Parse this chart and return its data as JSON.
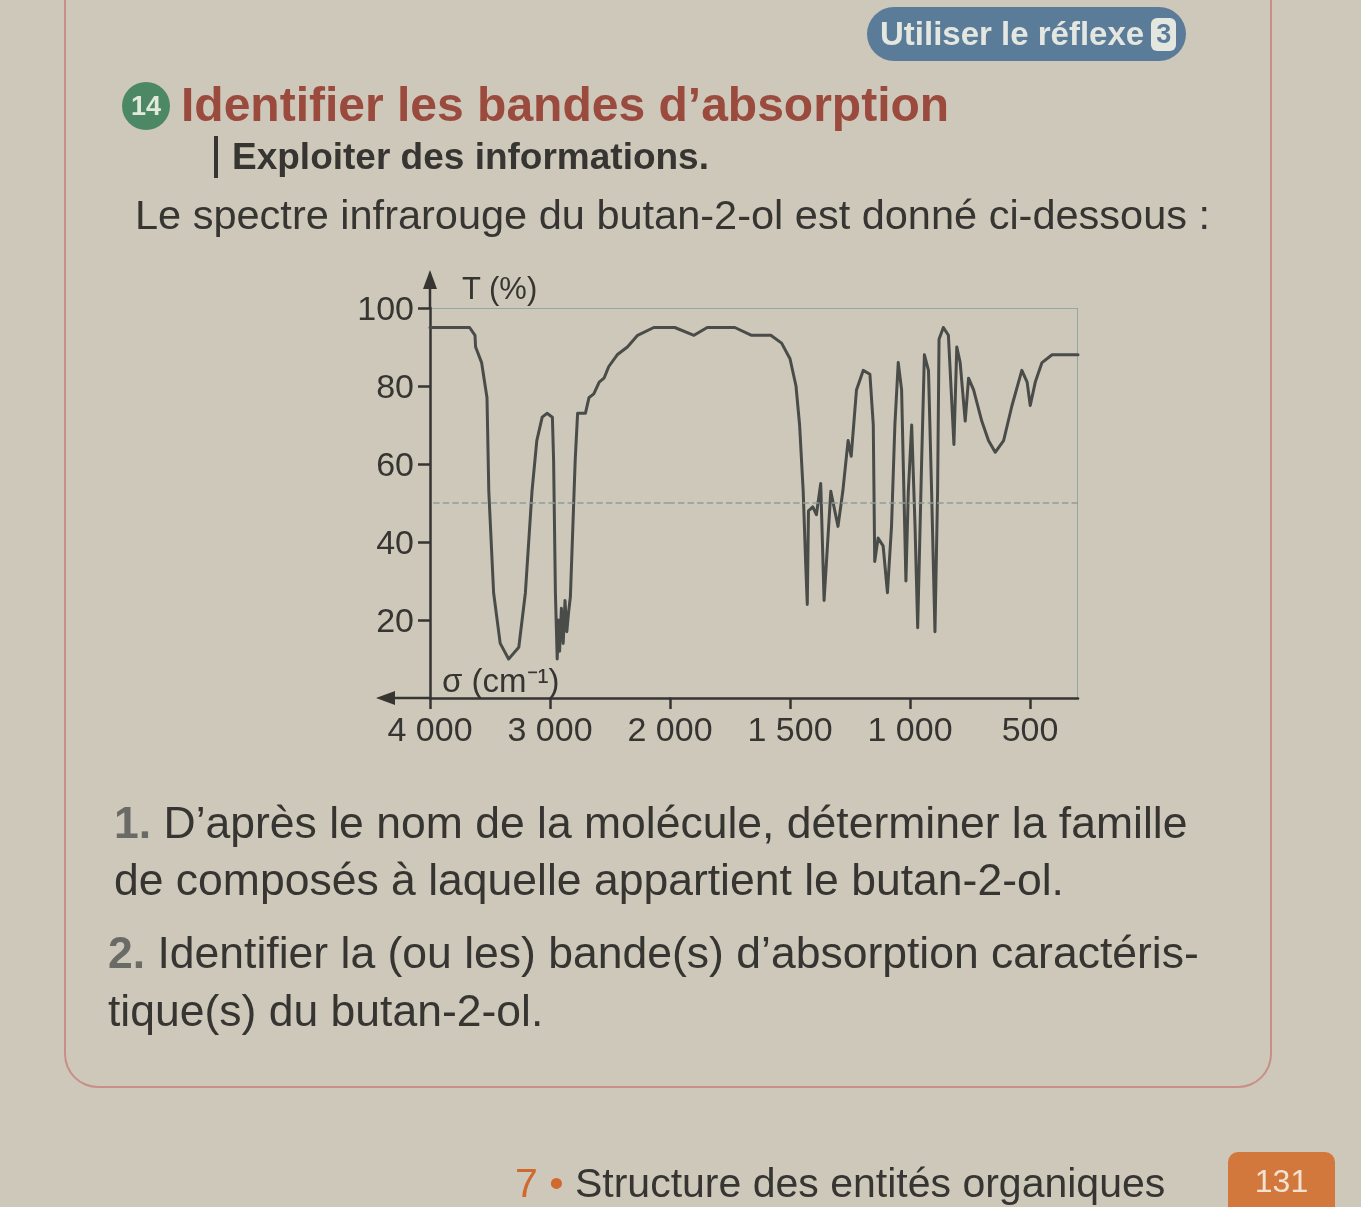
{
  "chart_data": [
    {
      "type": "line",
      "title": "Identifier les bandes d’absorption",
      "subtitle": "Exploiter des informations.",
      "xlabel": "σ (cm⁻¹)",
      "ylabel": "T (%)",
      "annotations": [
        "Utiliser le réflexe",
        "3",
        "14",
        "Le spectre infrarouge du butan-2-ol est donné ci-dessous :",
        "1.",
        "D’après le nom de la molécule, déterminer la famille de composés à laquelle appartient le butan-2-ol.",
        "2.",
        "Identifier la (ou les) bande(s) d’absorption caractéris-tique(s) du butan-2-ol.",
        "7 •",
        "Structure des entités organiques",
        "131"
      ],
      "x": [
        4000,
        3670,
        3625,
        3620,
        3570,
        3525,
        3510,
        3470,
        3415,
        3345,
        3260,
        3205,
        3150,
        3110,
        3065,
        3025,
        2980,
        2970,
        2955,
        2940,
        2930,
        2920,
        2905,
        2890,
        2875,
        2860,
        2845,
        2830,
        2790,
        2770,
        2705,
        2675,
        2635,
        2590,
        2550,
        2510,
        2440,
        2355,
        2270,
        2135,
        2000
      ],
      "values": [
        95,
        95,
        93,
        90,
        86,
        77,
        53,
        27,
        14,
        10,
        13,
        27,
        53,
        66,
        72,
        73,
        72,
        61,
        27,
        10,
        20,
        12,
        23,
        14,
        25,
        17,
        22,
        26,
        61,
        73,
        73,
        77,
        78,
        81,
        82,
        85,
        88,
        90,
        93,
        95,
        95
      ],
      "color": "#4a4c49",
      "xlim": [
        4000,
        2000
      ],
      "ylim": [
        0,
        100
      ],
      "xticks": [
        {
          "value": 4000,
          "label": "4 000"
        },
        {
          "value": 3000,
          "label": "3 000"
        },
        {
          "value": 2000,
          "label": "2 000"
        }
      ],
      "yticks": [
        20,
        40,
        60,
        80,
        100
      ],
      "grid": false,
      "ref_lines": [
        {
          "axis": "y",
          "value": 50,
          "color": "#8f9c98",
          "line_style": "dashed"
        }
      ]
    },
    {
      "type": "line",
      "x": [
        2000,
        1980,
        1900,
        1845,
        1775,
        1730,
        1660,
        1580,
        1535,
        1500,
        1475,
        1460,
        1445,
        1435,
        1428,
        1423,
        1405,
        1390,
        1372,
        1358,
        1330,
        1300,
        1280,
        1258,
        1245,
        1223,
        1195,
        1167,
        1153,
        1147,
        1133,
        1112,
        1094,
        1077,
        1063,
        1049,
        1035,
        1017,
        1007,
        993,
        979,
        968,
        951,
        940,
        923,
        910,
        896,
        885,
        879,
        861,
        840,
        817,
        805,
        791,
        770,
        756,
        735,
        701,
        673,
        645,
        610,
        575,
        534,
        512,
        499,
        478,
        450,
        408,
        300
      ],
      "values": [
        95,
        95,
        93,
        95,
        95,
        95,
        93,
        93,
        91,
        87,
        80,
        70,
        53,
        35,
        24,
        48,
        49,
        47,
        55,
        25,
        53,
        44,
        53,
        66,
        62,
        79,
        84,
        83,
        70,
        35,
        41,
        39,
        27,
        44,
        70,
        86,
        79,
        30,
        53,
        70,
        44,
        18,
        62,
        88,
        84,
        53,
        17,
        53,
        92,
        95,
        93,
        65,
        90,
        86,
        71,
        82,
        79,
        71,
        66,
        63,
        66,
        75,
        84,
        81,
        75,
        81,
        86,
        88,
        88
      ],
      "color": "#4a4c49",
      "xlim": [
        2000,
        300
      ],
      "ylim": [
        0,
        100
      ],
      "xticks": [
        {
          "value": 1500,
          "label": "1 500"
        },
        {
          "value": 1000,
          "label": "1 000"
        },
        500
      ],
      "yticks": [
        20,
        40,
        60,
        80,
        100
      ],
      "tick_labels": "x",
      "grid": false,
      "ref_lines": [
        {
          "axis": "y",
          "value": 50,
          "color": "#8f9c98",
          "line_style": "dashed"
        }
      ]
    }
  ]
}
